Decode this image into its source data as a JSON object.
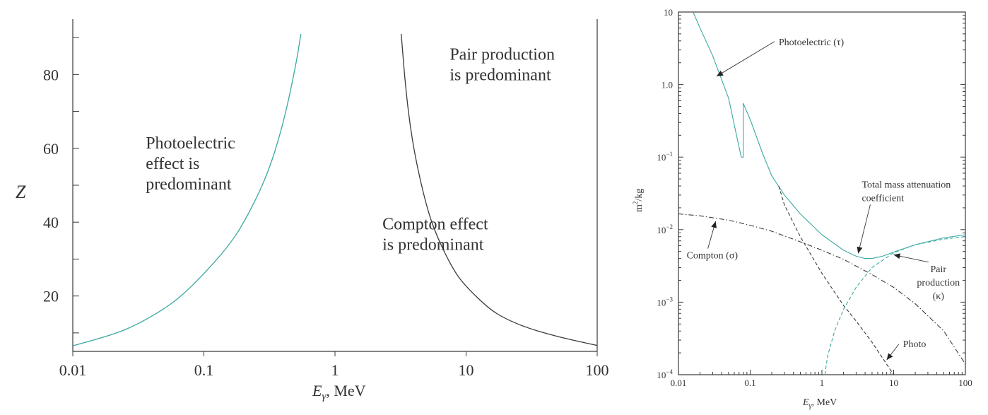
{
  "colors": {
    "teal": "#3aa9a0",
    "dark": "#3a3a3a",
    "text": "#333333"
  },
  "chart_data": [
    {
      "type": "line",
      "x_scale": "log",
      "xlim": [
        0.01,
        100
      ],
      "ylim": [
        5,
        95
      ],
      "x_ticks": [
        {
          "value": 0.01,
          "label": "0.01"
        },
        {
          "value": 0.1,
          "label": "0.1"
        },
        {
          "value": 1,
          "label": "1"
        },
        {
          "value": 10,
          "label": "10"
        },
        {
          "value": 100,
          "label": "100"
        }
      ],
      "y_ticks": [
        {
          "value": 20,
          "label": "20"
        },
        {
          "value": 40,
          "label": "40"
        },
        {
          "value": 60,
          "label": "60"
        },
        {
          "value": 80,
          "label": "80"
        }
      ],
      "xlabel_main": "E",
      "xlabel_sub": "γ",
      "xlabel_rest": ", MeV",
      "ylabel": "Z",
      "series": [
        {
          "color": "#3aa9a0",
          "x": [
            0.01,
            0.02,
            0.03,
            0.05,
            0.07,
            0.1,
            0.15,
            0.2,
            0.3,
            0.4,
            0.5,
            0.55
          ],
          "y": [
            6.5,
            9.5,
            12,
            16.5,
            20.5,
            26,
            33,
            39.5,
            52,
            66,
            82,
            91
          ]
        },
        {
          "color": "#3a3a3a",
          "x": [
            3.2,
            3.5,
            4,
            5,
            6,
            8,
            10,
            15,
            20,
            30,
            50,
            70,
            100
          ],
          "y": [
            91,
            74,
            59,
            44,
            36,
            27,
            22.5,
            16.5,
            13.8,
            11.2,
            9,
            7.8,
            6.6
          ]
        }
      ],
      "annotations": [
        {
          "lines": [
            "Photoelectric",
            "effect is",
            "predominant"
          ],
          "x": 0.036,
          "y": 60
        },
        {
          "lines": [
            "Pair production",
            "is predominant"
          ],
          "x": 7.5,
          "y": 84
        },
        {
          "lines": [
            "Compton effect",
            "is predominant"
          ],
          "x": 2.3,
          "y": 38
        }
      ]
    },
    {
      "type": "line",
      "x_scale": "log",
      "y_scale": "log",
      "xlim": [
        0.01,
        100
      ],
      "ylim": [
        0.0001,
        10
      ],
      "x_ticks": [
        {
          "value": 0.01,
          "label": "0.01"
        },
        {
          "value": 0.1,
          "label": "0.1"
        },
        {
          "value": 1,
          "label": "1"
        },
        {
          "value": 10,
          "label": "10"
        },
        {
          "value": 100,
          "label": "100"
        }
      ],
      "y_ticks": [
        {
          "value": 0.0001,
          "base": "10",
          "exp": "−4"
        },
        {
          "value": 0.001,
          "base": "10",
          "exp": "−3"
        },
        {
          "value": 0.01,
          "base": "10",
          "exp": "−2"
        },
        {
          "value": 0.1,
          "base": "10",
          "exp": "−1"
        },
        {
          "value": 1,
          "base": "1.0",
          "exp": ""
        },
        {
          "value": 10,
          "base": "10",
          "exp": ""
        }
      ],
      "xlabel_main": "E",
      "xlabel_sub": "γ",
      "xlabel_rest": ", MeV",
      "ylabel_main": "m",
      "ylabel_sup": "2",
      "ylabel_rest": "/kg",
      "series": [
        {
          "color": "#3aa9a0",
          "style": "solid",
          "x": [
            0.016,
            0.02,
            0.03,
            0.05,
            0.075,
            0.08,
            0.08,
            0.1,
            0.15,
            0.2,
            0.3,
            0.5,
            1,
            2,
            3,
            4,
            5,
            7,
            10,
            20,
            50,
            100
          ],
          "y": [
            10,
            6,
            2.5,
            0.65,
            0.1,
            0.1,
            0.55,
            0.33,
            0.11,
            0.055,
            0.03,
            0.0165,
            0.0085,
            0.0052,
            0.0043,
            0.004,
            0.004,
            0.0043,
            0.0049,
            0.0062,
            0.0077,
            0.0085
          ]
        },
        {
          "color": "#3a3a3a",
          "style": "dashdot",
          "x": [
            0.01,
            0.02,
            0.05,
            0.1,
            0.2,
            0.5,
            1,
            2,
            5,
            10,
            20,
            50,
            100
          ],
          "y": [
            0.0165,
            0.0155,
            0.0135,
            0.0115,
            0.0095,
            0.0068,
            0.0052,
            0.0039,
            0.0024,
            0.0016,
            0.00095,
            0.0004,
            0.00014
          ]
        },
        {
          "color": "#3a3a3a",
          "style": "dashed",
          "x": [
            0.25,
            0.3,
            0.5,
            1,
            2,
            3,
            5,
            10
          ],
          "y": [
            0.04,
            0.022,
            0.008,
            0.0025,
            0.0009,
            0.00055,
            0.00028,
            0.0001
          ]
        },
        {
          "color": "#3aa9a0",
          "style": "dashed",
          "x": [
            1.1,
            1.2,
            1.5,
            2,
            3,
            5,
            10,
            20,
            50,
            100
          ],
          "y": [
            0.0001,
            0.00018,
            0.0004,
            0.0008,
            0.0016,
            0.003,
            0.0048,
            0.0062,
            0.0074,
            0.008
          ]
        }
      ],
      "annotations": [
        {
          "lines": [
            "Photoelectric (τ)"
          ],
          "x": 0.25,
          "y": 3.5,
          "arrow_to": [
            0.034,
            1.3
          ]
        },
        {
          "lines": [
            "Total mass attenuation",
            "coefficient"
          ],
          "x": 3.6,
          "y": 0.038,
          "arrow_to": [
            3.2,
            0.0047
          ]
        },
        {
          "lines": [
            "Compton (σ)"
          ],
          "x": 0.013,
          "y": 0.004,
          "arrow_to": [
            0.033,
            0.013
          ]
        },
        {
          "lines": [
            "Pair",
            "production",
            "(κ)"
          ],
          "x": 42,
          "y": 0.0026,
          "arrow_to": [
            10,
            0.0045
          ]
        },
        {
          "lines": [
            "Photo"
          ],
          "x": 13.5,
          "y": 0.00024,
          "arrow_to": [
            8,
            0.00016
          ]
        }
      ]
    }
  ]
}
